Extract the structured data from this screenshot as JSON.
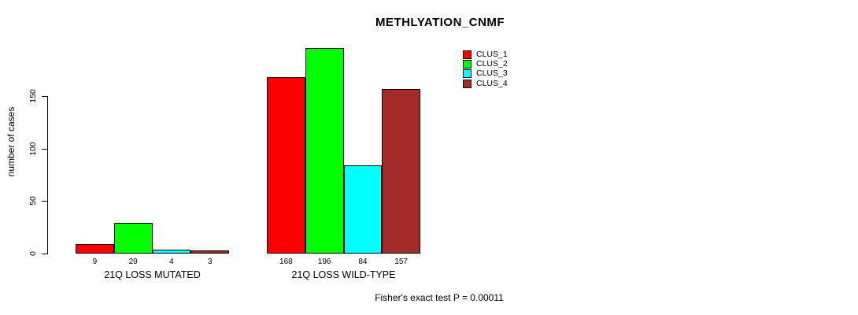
{
  "chart_data": {
    "type": "bar",
    "title": "METHLYATION_CNMF",
    "ylabel": "number of cases",
    "xlabel": "",
    "yticks": [
      0,
      50,
      100,
      150
    ],
    "ylim": [
      0,
      200
    ],
    "grid": false,
    "legend_position": "top-right",
    "categories": [
      "21Q LOSS MUTATED",
      "21Q LOSS WILD-TYPE"
    ],
    "series": [
      {
        "name": "CLUS_1",
        "color": "#ff0000",
        "values": [
          9,
          168
        ]
      },
      {
        "name": "CLUS_2",
        "color": "#00ff00",
        "values": [
          29,
          196
        ]
      },
      {
        "name": "CLUS_3",
        "color": "#00ffff",
        "values": [
          4,
          84
        ]
      },
      {
        "name": "CLUS_4",
        "color": "#a52a2a",
        "values": [
          3,
          157
        ]
      }
    ],
    "bar_value_labels": true,
    "footnote": "Fisher's exact test P = 0.00011"
  }
}
